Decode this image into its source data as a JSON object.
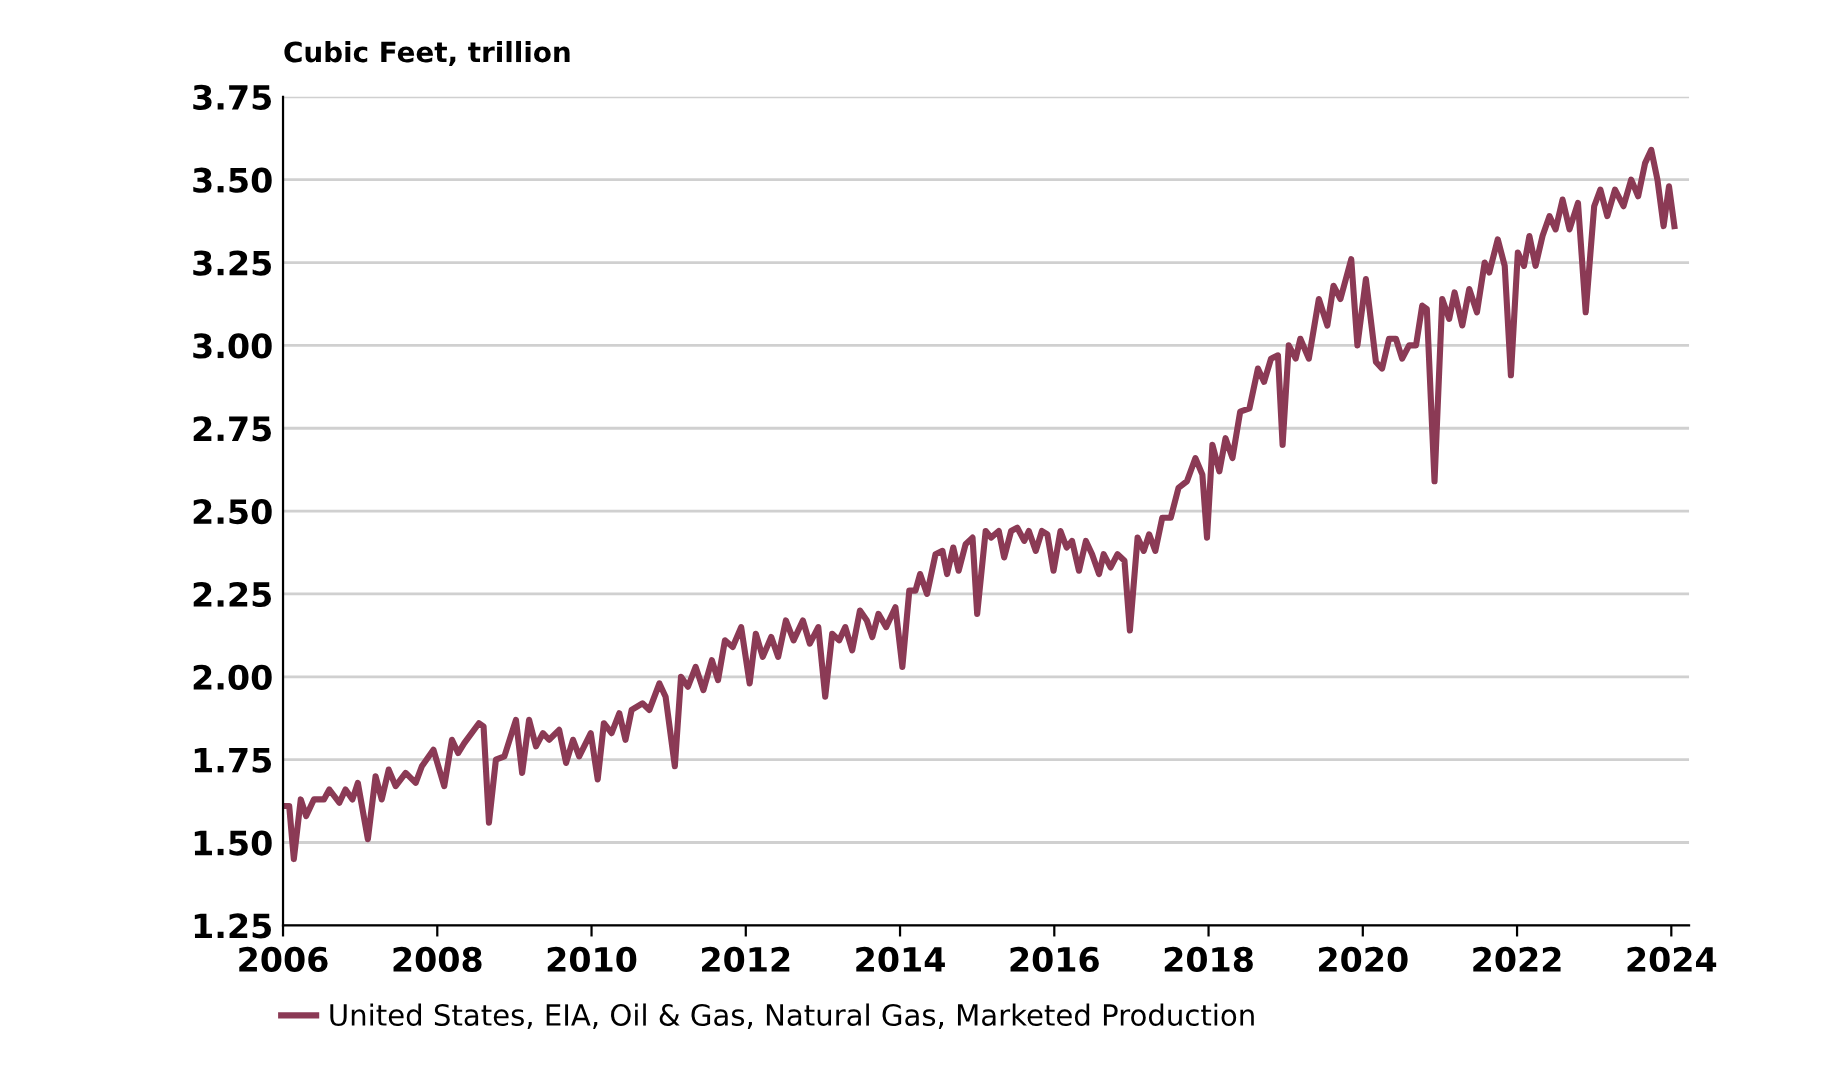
{
  "chart_data": {
    "type": "line",
    "ylabel": "Cubic Feet, trillion",
    "xlim": [
      2006,
      2024.23
    ],
    "ylim": [
      1.25,
      3.75
    ],
    "xticks": [
      2006,
      2008,
      2010,
      2012,
      2014,
      2016,
      2018,
      2020,
      2022,
      2024
    ],
    "yticks": [
      {
        "value": 1.25,
        "label": "1.25"
      },
      {
        "value": 1.5,
        "label": "1.50"
      },
      {
        "value": 1.75,
        "label": "1.75"
      },
      {
        "value": 2.0,
        "label": "2.00"
      },
      {
        "value": 2.25,
        "label": "2.25"
      },
      {
        "value": 2.5,
        "label": "2.50"
      },
      {
        "value": 2.75,
        "label": "2.75"
      },
      {
        "value": 3.0,
        "label": "3.00"
      },
      {
        "value": 3.25,
        "label": "3.25"
      },
      {
        "value": 3.5,
        "label": "3.50"
      },
      {
        "value": 3.75,
        "label": "3.75"
      }
    ],
    "grid": "y",
    "legend": "bottom",
    "marker": "none",
    "line_style": "solid",
    "series": [
      {
        "name": "United States, EIA, Oil & Gas, Natural Gas, Marketed Production",
        "color": "#8b3a55",
        "x": [
          2006.0,
          2006.08,
          2006.14,
          2006.23,
          2006.3,
          2006.4,
          2006.53,
          2006.6,
          2006.73,
          2006.81,
          2006.9,
          2006.97,
          2007.1,
          2007.2,
          2007.28,
          2007.37,
          2007.46,
          2007.59,
          2007.72,
          2007.8,
          2007.95,
          2008.09,
          2008.19,
          2008.27,
          2008.35,
          2008.54,
          2008.6,
          2008.67,
          2008.76,
          2008.87,
          2009.02,
          2009.1,
          2009.19,
          2009.28,
          2009.37,
          2009.45,
          2009.58,
          2009.67,
          2009.76,
          2009.84,
          2009.99,
          2010.08,
          2010.16,
          2010.26,
          2010.36,
          2010.44,
          2010.52,
          2010.66,
          2010.75,
          2010.88,
          2010.96,
          2011.08,
          2011.16,
          2011.25,
          2011.35,
          2011.45,
          2011.56,
          2011.64,
          2011.73,
          2011.83,
          2011.94,
          2012.05,
          2012.13,
          2012.22,
          2012.33,
          2012.42,
          2012.52,
          2012.62,
          2012.74,
          2012.83,
          2012.94,
          2013.03,
          2013.12,
          2013.21,
          2013.29,
          2013.38,
          2013.48,
          2013.57,
          2013.64,
          2013.72,
          2013.82,
          2013.94,
          2014.03,
          2014.12,
          2014.2,
          2014.26,
          2014.35,
          2014.46,
          2014.55,
          2014.61,
          2014.69,
          2014.76,
          2014.85,
          2014.94,
          2015.0,
          2015.11,
          2015.18,
          2015.28,
          2015.35,
          2015.44,
          2015.52,
          2015.61,
          2015.67,
          2015.76,
          2015.84,
          2015.91,
          2015.99,
          2016.08,
          2016.16,
          2016.23,
          2016.32,
          2016.41,
          2016.49,
          2016.58,
          2016.64,
          2016.73,
          2016.82,
          2016.91,
          2016.98,
          2017.08,
          2017.16,
          2017.23,
          2017.31,
          2017.4,
          2017.51,
          2017.61,
          2017.72,
          2017.83,
          2017.92,
          2017.98,
          2018.05,
          2018.14,
          2018.22,
          2018.31,
          2018.41,
          2018.53,
          2018.64,
          2018.72,
          2018.81,
          2018.9,
          2018.96,
          2019.04,
          2019.13,
          2019.19,
          2019.3,
          2019.43,
          2019.54,
          2019.62,
          2019.71,
          2019.85,
          2019.93,
          2020.04,
          2020.17,
          2020.25,
          2020.34,
          2020.43,
          2020.51,
          2020.6,
          2020.69,
          2020.77,
          2020.83,
          2020.93,
          2021.03,
          2021.12,
          2021.19,
          2021.29,
          2021.38,
          2021.48,
          2021.58,
          2021.64,
          2021.75,
          2021.84,
          2021.92,
          2022.01,
          2022.09,
          2022.16,
          2022.24,
          2022.33,
          2022.42,
          2022.5,
          2022.59,
          2022.68,
          2022.79,
          2022.89,
          2023.0,
          2023.08,
          2023.17,
          2023.27,
          2023.38,
          2023.48,
          2023.57,
          2023.66,
          2023.74,
          2023.82,
          2023.9,
          2023.97,
          2024.04
        ],
        "values": [
          1.61,
          1.61,
          1.45,
          1.63,
          1.58,
          1.63,
          1.63,
          1.66,
          1.62,
          1.66,
          1.63,
          1.68,
          1.51,
          1.7,
          1.63,
          1.72,
          1.67,
          1.71,
          1.68,
          1.73,
          1.78,
          1.67,
          1.81,
          1.77,
          1.8,
          1.86,
          1.85,
          1.56,
          1.75,
          1.76,
          1.87,
          1.71,
          1.87,
          1.79,
          1.83,
          1.81,
          1.84,
          1.74,
          1.81,
          1.76,
          1.83,
          1.69,
          1.86,
          1.83,
          1.89,
          1.81,
          1.9,
          1.92,
          1.9,
          1.98,
          1.94,
          1.73,
          2.0,
          1.97,
          2.03,
          1.96,
          2.05,
          1.99,
          2.11,
          2.09,
          2.15,
          1.98,
          2.13,
          2.06,
          2.12,
          2.06,
          2.17,
          2.11,
          2.17,
          2.1,
          2.15,
          1.94,
          2.13,
          2.11,
          2.15,
          2.08,
          2.2,
          2.17,
          2.12,
          2.19,
          2.15,
          2.21,
          2.03,
          2.26,
          2.26,
          2.31,
          2.25,
          2.37,
          2.38,
          2.31,
          2.39,
          2.32,
          2.4,
          2.42,
          2.19,
          2.44,
          2.42,
          2.44,
          2.36,
          2.44,
          2.45,
          2.41,
          2.44,
          2.38,
          2.44,
          2.43,
          2.32,
          2.44,
          2.39,
          2.41,
          2.32,
          2.41,
          2.37,
          2.31,
          2.37,
          2.33,
          2.37,
          2.35,
          2.14,
          2.42,
          2.38,
          2.43,
          2.38,
          2.48,
          2.48,
          2.57,
          2.59,
          2.66,
          2.61,
          2.42,
          2.7,
          2.62,
          2.72,
          2.66,
          2.8,
          2.81,
          2.93,
          2.89,
          2.96,
          2.97,
          2.7,
          3.0,
          2.96,
          3.02,
          2.96,
          3.14,
          3.06,
          3.18,
          3.14,
          3.26,
          3.0,
          3.2,
          2.95,
          2.93,
          3.02,
          3.02,
          2.96,
          3.0,
          3.0,
          3.12,
          3.11,
          2.59,
          3.14,
          3.08,
          3.16,
          3.06,
          3.17,
          3.1,
          3.25,
          3.22,
          3.32,
          3.24,
          2.91,
          3.28,
          3.24,
          3.33,
          3.24,
          3.33,
          3.39,
          3.35,
          3.44,
          3.35,
          3.43,
          3.1,
          3.42,
          3.47,
          3.39,
          3.47,
          3.42,
          3.5,
          3.45,
          3.55,
          3.59,
          3.5,
          3.36,
          3.48,
          3.36
        ]
      }
    ]
  }
}
